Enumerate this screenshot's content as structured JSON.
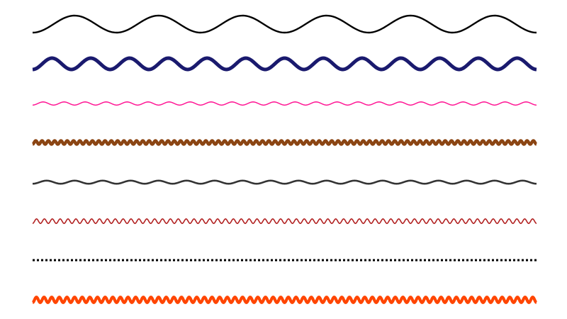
{
  "chart_data": {
    "type": "line",
    "series": [
      {
        "color": "#000000",
        "style": "sine",
        "cycles": 6,
        "amplitude": 12,
        "weight": 2.4
      },
      {
        "color": "#1a1a6e",
        "style": "sine",
        "cycles": 13,
        "amplitude": 8,
        "weight": 5.0
      },
      {
        "color": "#ff1493",
        "style": "sine",
        "cycles": 24,
        "amplitude": 2.2,
        "weight": 1.5
      },
      {
        "color": "#8b4513",
        "style": "sine",
        "cycles": 80,
        "amplitude": 2.5,
        "weight": 4.5
      },
      {
        "color": "#333333",
        "style": "sine",
        "cycles": 18,
        "amplitude": 2.2,
        "weight": 2.6
      },
      {
        "color": "#b22222",
        "style": "sine",
        "cycles": 64,
        "amplitude": 3.2,
        "weight": 1.6
      },
      {
        "color": "#000000",
        "style": "dashed",
        "cycles": 0,
        "amplitude": 0,
        "weight": 3.0
      },
      {
        "color": "#ff4500",
        "style": "sine",
        "cycles": 66,
        "amplitude": 3.8,
        "weight": 4.2
      }
    ]
  }
}
